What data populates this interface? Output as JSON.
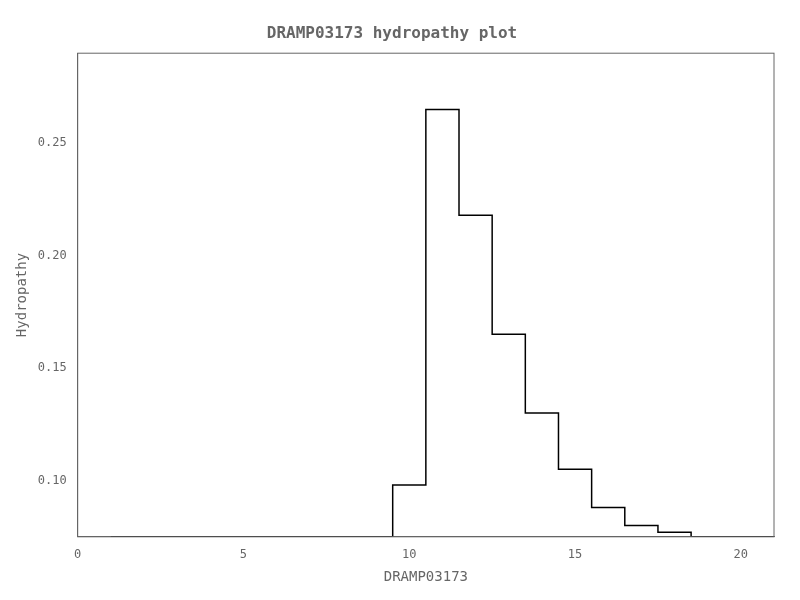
{
  "chart_data": {
    "type": "line",
    "title": "DRAMP03173 hydropathy plot",
    "xlabel": "DRAMP03173",
    "ylabel": "Hydropathy",
    "x": [
      1,
      2,
      3,
      4,
      5,
      6,
      7,
      8,
      9,
      10,
      11,
      12,
      13,
      14,
      15,
      16,
      17,
      18,
      19,
      20,
      21
    ],
    "values": [
      0.075,
      0.075,
      0.075,
      0.075,
      0.075,
      0.075,
      0.075,
      0.075,
      0.075,
      0.098,
      0.265,
      0.218,
      0.165,
      0.13,
      0.105,
      0.088,
      0.08,
      0.077,
      0.075,
      0.075,
      0.075
    ],
    "color": "#000000",
    "line_style": "steps-mid",
    "xlim": [
      0,
      21
    ],
    "ylim": [
      0.075,
      0.29
    ],
    "xticks": [
      0,
      5,
      10,
      15,
      20
    ],
    "yticks": [
      {
        "value": 0.1,
        "label": "0.10"
      },
      {
        "value": 0.15,
        "label": "0.15"
      },
      {
        "value": 0.2,
        "label": "0.20"
      },
      {
        "value": 0.25,
        "label": "0.25"
      }
    ],
    "grid": false
  }
}
